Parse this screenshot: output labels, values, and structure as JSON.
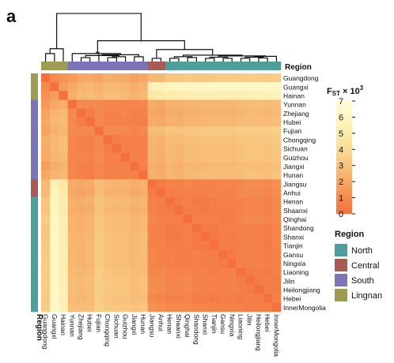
{
  "panel_label": "a",
  "region_bar_title": "Region",
  "region_side_title": "Region",
  "colorbar": {
    "title_main": "F",
    "title_sub": "ST",
    "title_suffix": " × 10",
    "title_sup": "3",
    "ticks": [
      "7",
      "6",
      "5",
      "4",
      "3",
      "2",
      "1",
      "0"
    ],
    "stops": [
      "#f4713e",
      "#f58a4e",
      "#f6a866",
      "#f8c47e",
      "#fadb96",
      "#fcecab",
      "#fef7c4",
      "#fffcd8"
    ]
  },
  "legend": {
    "title": "Region",
    "items": [
      {
        "label": "North",
        "color": "#4f9e99"
      },
      {
        "label": "Central",
        "color": "#a85a57"
      },
      {
        "label": "South",
        "color": "#7b74b8"
      },
      {
        "label": "Lingnan",
        "color": "#9e9b55"
      }
    ]
  },
  "chart_data": {
    "type": "heatmap",
    "rows": [
      "Guangdong",
      "Guangxi",
      "Hainan",
      "Yunnan",
      "Zhejiang",
      "Hubei",
      "Fujian",
      "Chongqing",
      "Sichuan",
      "Guizhou",
      "Jiangxi",
      "Hunan",
      "Jiangsu",
      "Anhui",
      "Henan",
      "Shaanxi",
      "Qinghai",
      "Shandong",
      "Shanxi",
      "Tianjin",
      "Gansu",
      "Ningxia",
      "Liaoning",
      "Jilin",
      "Heilongjiang",
      "Hebei",
      "InnerMongolia"
    ],
    "columns": [
      "Guangdong",
      "Guangxi",
      "Hainan",
      "Yunnan",
      "Zhejiang",
      "Hubei",
      "Fujian",
      "Chongqing",
      "Sichuan",
      "Guizhou",
      "Jiangxi",
      "Hunan",
      "Jiangsu",
      "Anhui",
      "Henan",
      "Shaanxi",
      "Qinghai",
      "Shandong",
      "Shanxi",
      "Tianjin",
      "Gansu",
      "Ningxia",
      "Liaoning",
      "Jilin",
      "Heilongjiang",
      "Hebei",
      "InnerMongolia"
    ],
    "row_regions": [
      "Lingnan",
      "Lingnan",
      "Lingnan",
      "South",
      "South",
      "South",
      "South",
      "South",
      "South",
      "South",
      "South",
      "South",
      "Central",
      "Central",
      "North",
      "North",
      "North",
      "North",
      "North",
      "North",
      "North",
      "North",
      "North",
      "North",
      "North",
      "North",
      "North"
    ],
    "column_regions": [
      "Lingnan",
      "Lingnan",
      "Lingnan",
      "South",
      "South",
      "South",
      "South",
      "South",
      "South",
      "South",
      "South",
      "South",
      "Central",
      "Central",
      "North",
      "North",
      "North",
      "North",
      "North",
      "North",
      "North",
      "North",
      "North",
      "North",
      "North",
      "North",
      "North"
    ],
    "values": [
      [
        0.0,
        1.0,
        1.3,
        1.5,
        1.9,
        2.0,
        1.8,
        2.2,
        2.1,
        2.1,
        1.7,
        2.0,
        2.6,
        2.6,
        3.1,
        3.0,
        3.3,
        3.0,
        3.1,
        3.2,
        3.3,
        3.3,
        3.3,
        3.4,
        3.3,
        3.2,
        3.4
      ],
      [
        1.0,
        0.0,
        1.6,
        2.0,
        2.4,
        2.5,
        2.3,
        2.6,
        2.6,
        2.5,
        2.2,
        2.4,
        5.4,
        5.6,
        5.7,
        5.8,
        5.9,
        5.9,
        6.0,
        6.0,
        6.1,
        6.1,
        6.0,
        6.1,
        6.1,
        6.0,
        6.2
      ],
      [
        1.3,
        1.6,
        0.0,
        2.2,
        2.6,
        2.7,
        2.5,
        2.8,
        2.8,
        2.7,
        2.4,
        2.6,
        4.8,
        4.9,
        5.1,
        5.1,
        5.2,
        5.2,
        5.3,
        5.3,
        5.4,
        5.3,
        5.3,
        5.4,
        5.4,
        5.3,
        5.5
      ],
      [
        1.5,
        2.0,
        2.2,
        0.0,
        0.9,
        0.9,
        1.0,
        0.8,
        0.8,
        0.8,
        0.8,
        0.8,
        2.1,
        2.0,
        2.3,
        2.2,
        2.4,
        2.4,
        2.5,
        2.5,
        2.5,
        2.5,
        2.6,
        2.7,
        2.7,
        2.6,
        2.8
      ],
      [
        1.9,
        2.4,
        2.6,
        0.9,
        0.0,
        0.5,
        0.9,
        0.7,
        0.7,
        0.8,
        0.6,
        0.7,
        2.0,
        1.9,
        2.2,
        2.1,
        2.3,
        2.3,
        2.4,
        2.4,
        2.4,
        2.4,
        2.5,
        2.6,
        2.6,
        2.5,
        2.7
      ],
      [
        2.0,
        2.5,
        2.7,
        0.9,
        0.5,
        0.0,
        0.9,
        0.6,
        0.6,
        0.7,
        0.6,
        0.5,
        2.1,
        2.0,
        2.3,
        2.2,
        2.4,
        2.4,
        2.5,
        2.5,
        2.5,
        2.5,
        2.6,
        2.7,
        2.7,
        2.6,
        2.8
      ],
      [
        1.8,
        2.3,
        2.5,
        1.0,
        0.9,
        0.9,
        0.0,
        1.0,
        1.0,
        1.0,
        0.8,
        0.9,
        2.8,
        2.7,
        3.0,
        2.9,
        3.1,
        3.1,
        3.2,
        3.2,
        3.2,
        3.2,
        3.3,
        3.4,
        3.4,
        3.3,
        3.5
      ],
      [
        2.2,
        2.6,
        2.8,
        0.8,
        0.7,
        0.6,
        1.0,
        0.0,
        0.5,
        0.6,
        0.7,
        0.6,
        2.5,
        2.4,
        2.7,
        2.6,
        2.8,
        2.8,
        2.9,
        2.9,
        2.9,
        2.9,
        3.0,
        3.1,
        3.1,
        3.0,
        3.2
      ],
      [
        2.1,
        2.6,
        2.8,
        0.8,
        0.7,
        0.6,
        1.0,
        0.5,
        0.0,
        0.6,
        0.7,
        0.6,
        2.4,
        2.3,
        2.6,
        2.5,
        2.7,
        2.7,
        2.8,
        2.8,
        2.8,
        2.8,
        2.9,
        3.0,
        3.0,
        2.9,
        3.1
      ],
      [
        2.1,
        2.5,
        2.7,
        0.8,
        0.8,
        0.7,
        1.0,
        0.6,
        0.6,
        0.0,
        0.7,
        0.6,
        2.4,
        2.3,
        2.6,
        2.5,
        2.7,
        2.7,
        2.8,
        2.8,
        2.8,
        2.8,
        2.9,
        3.0,
        3.0,
        2.9,
        3.1
      ],
      [
        1.7,
        2.2,
        2.4,
        0.8,
        0.6,
        0.6,
        0.8,
        0.7,
        0.7,
        0.7,
        0.0,
        0.6,
        2.2,
        2.1,
        2.4,
        2.3,
        2.5,
        2.5,
        2.6,
        2.6,
        2.6,
        2.6,
        2.7,
        2.8,
        2.8,
        2.7,
        2.9
      ],
      [
        2.0,
        2.4,
        2.6,
        0.8,
        0.7,
        0.5,
        0.9,
        0.6,
        0.6,
        0.6,
        0.6,
        0.0,
        2.3,
        2.2,
        2.5,
        2.4,
        2.6,
        2.6,
        2.7,
        2.7,
        2.7,
        2.7,
        2.8,
        2.9,
        2.9,
        2.8,
        3.0
      ],
      [
        2.6,
        5.4,
        4.8,
        2.1,
        2.0,
        2.1,
        2.8,
        2.5,
        2.4,
        2.4,
        2.2,
        2.3,
        0.0,
        0.4,
        0.6,
        0.6,
        0.8,
        0.6,
        0.7,
        0.7,
        0.8,
        0.8,
        0.9,
        1.1,
        1.1,
        0.9,
        1.2
      ],
      [
        2.6,
        5.6,
        4.9,
        2.0,
        1.9,
        2.0,
        2.7,
        2.4,
        2.3,
        2.3,
        2.1,
        2.2,
        0.4,
        0.0,
        0.5,
        0.5,
        0.7,
        0.6,
        0.6,
        0.7,
        0.7,
        0.7,
        0.9,
        1.0,
        1.0,
        0.8,
        1.1
      ],
      [
        3.1,
        5.7,
        5.1,
        2.3,
        2.2,
        2.3,
        3.0,
        2.7,
        2.6,
        2.6,
        2.4,
        2.5,
        0.6,
        0.5,
        0.0,
        0.4,
        0.6,
        0.4,
        0.4,
        0.5,
        0.6,
        0.6,
        0.7,
        0.8,
        0.8,
        0.6,
        0.9
      ],
      [
        3.0,
        5.8,
        5.1,
        2.2,
        2.1,
        2.2,
        2.9,
        2.6,
        2.5,
        2.5,
        2.3,
        2.4,
        0.6,
        0.5,
        0.4,
        0.0,
        0.5,
        0.5,
        0.4,
        0.5,
        0.5,
        0.5,
        0.7,
        0.8,
        0.8,
        0.6,
        0.9
      ],
      [
        3.3,
        5.9,
        5.2,
        2.4,
        2.3,
        2.4,
        3.1,
        2.8,
        2.7,
        2.7,
        2.5,
        2.6,
        0.8,
        0.7,
        0.6,
        0.5,
        0.0,
        0.6,
        0.6,
        0.6,
        0.5,
        0.5,
        0.8,
        0.9,
        0.9,
        0.7,
        0.9
      ],
      [
        3.0,
        5.9,
        5.2,
        2.4,
        2.3,
        2.4,
        3.1,
        2.8,
        2.7,
        2.7,
        2.5,
        2.6,
        0.6,
        0.6,
        0.4,
        0.5,
        0.6,
        0.0,
        0.4,
        0.4,
        0.6,
        0.6,
        0.6,
        0.7,
        0.7,
        0.5,
        0.8
      ],
      [
        3.1,
        6.0,
        5.3,
        2.5,
        2.4,
        2.5,
        3.2,
        2.9,
        2.8,
        2.8,
        2.6,
        2.7,
        0.7,
        0.6,
        0.4,
        0.4,
        0.6,
        0.4,
        0.0,
        0.4,
        0.5,
        0.5,
        0.6,
        0.7,
        0.7,
        0.5,
        0.8
      ],
      [
        3.2,
        6.0,
        5.3,
        2.5,
        2.4,
        2.5,
        3.2,
        2.9,
        2.8,
        2.8,
        2.6,
        2.7,
        0.7,
        0.7,
        0.5,
        0.5,
        0.6,
        0.4,
        0.4,
        0.0,
        0.5,
        0.5,
        0.5,
        0.6,
        0.6,
        0.4,
        0.7
      ],
      [
        3.3,
        6.1,
        5.4,
        2.5,
        2.4,
        2.5,
        3.2,
        2.9,
        2.8,
        2.8,
        2.6,
        2.7,
        0.8,
        0.7,
        0.6,
        0.5,
        0.5,
        0.6,
        0.5,
        0.5,
        0.0,
        0.4,
        0.6,
        0.7,
        0.7,
        0.5,
        0.7
      ],
      [
        3.3,
        6.1,
        5.3,
        2.5,
        2.4,
        2.5,
        3.2,
        2.9,
        2.8,
        2.8,
        2.6,
        2.7,
        0.8,
        0.7,
        0.6,
        0.5,
        0.5,
        0.6,
        0.5,
        0.5,
        0.4,
        0.0,
        0.6,
        0.7,
        0.7,
        0.5,
        0.7
      ],
      [
        3.3,
        6.0,
        5.3,
        2.6,
        2.5,
        2.6,
        3.3,
        3.0,
        2.9,
        2.9,
        2.7,
        2.8,
        0.9,
        0.9,
        0.7,
        0.7,
        0.8,
        0.6,
        0.6,
        0.5,
        0.6,
        0.6,
        0.0,
        0.4,
        0.5,
        0.4,
        0.6
      ],
      [
        3.4,
        6.1,
        5.4,
        2.7,
        2.6,
        2.7,
        3.4,
        3.1,
        3.0,
        3.0,
        2.8,
        2.9,
        1.1,
        1.0,
        0.8,
        0.8,
        0.9,
        0.7,
        0.7,
        0.6,
        0.7,
        0.7,
        0.4,
        0.0,
        0.4,
        0.5,
        0.5
      ],
      [
        3.3,
        6.1,
        5.4,
        2.7,
        2.6,
        2.7,
        3.4,
        3.1,
        3.0,
        3.0,
        2.8,
        2.9,
        1.1,
        1.0,
        0.8,
        0.8,
        0.9,
        0.7,
        0.7,
        0.6,
        0.7,
        0.7,
        0.5,
        0.4,
        0.0,
        0.5,
        0.5
      ],
      [
        3.2,
        6.0,
        5.3,
        2.6,
        2.5,
        2.6,
        3.3,
        3.0,
        2.9,
        2.9,
        2.7,
        2.8,
        0.9,
        0.8,
        0.6,
        0.6,
        0.7,
        0.5,
        0.5,
        0.4,
        0.5,
        0.5,
        0.4,
        0.5,
        0.5,
        0.0,
        0.6
      ],
      [
        3.4,
        6.2,
        5.5,
        2.8,
        2.7,
        2.8,
        3.5,
        3.2,
        3.1,
        3.1,
        2.9,
        3.0,
        1.2,
        1.1,
        0.9,
        0.9,
        0.9,
        0.8,
        0.8,
        0.7,
        0.7,
        0.7,
        0.6,
        0.5,
        0.5,
        0.6,
        0.0
      ]
    ],
    "value_range": [
      0,
      7
    ],
    "dendrogram": "hierarchical clustering, top"
  }
}
